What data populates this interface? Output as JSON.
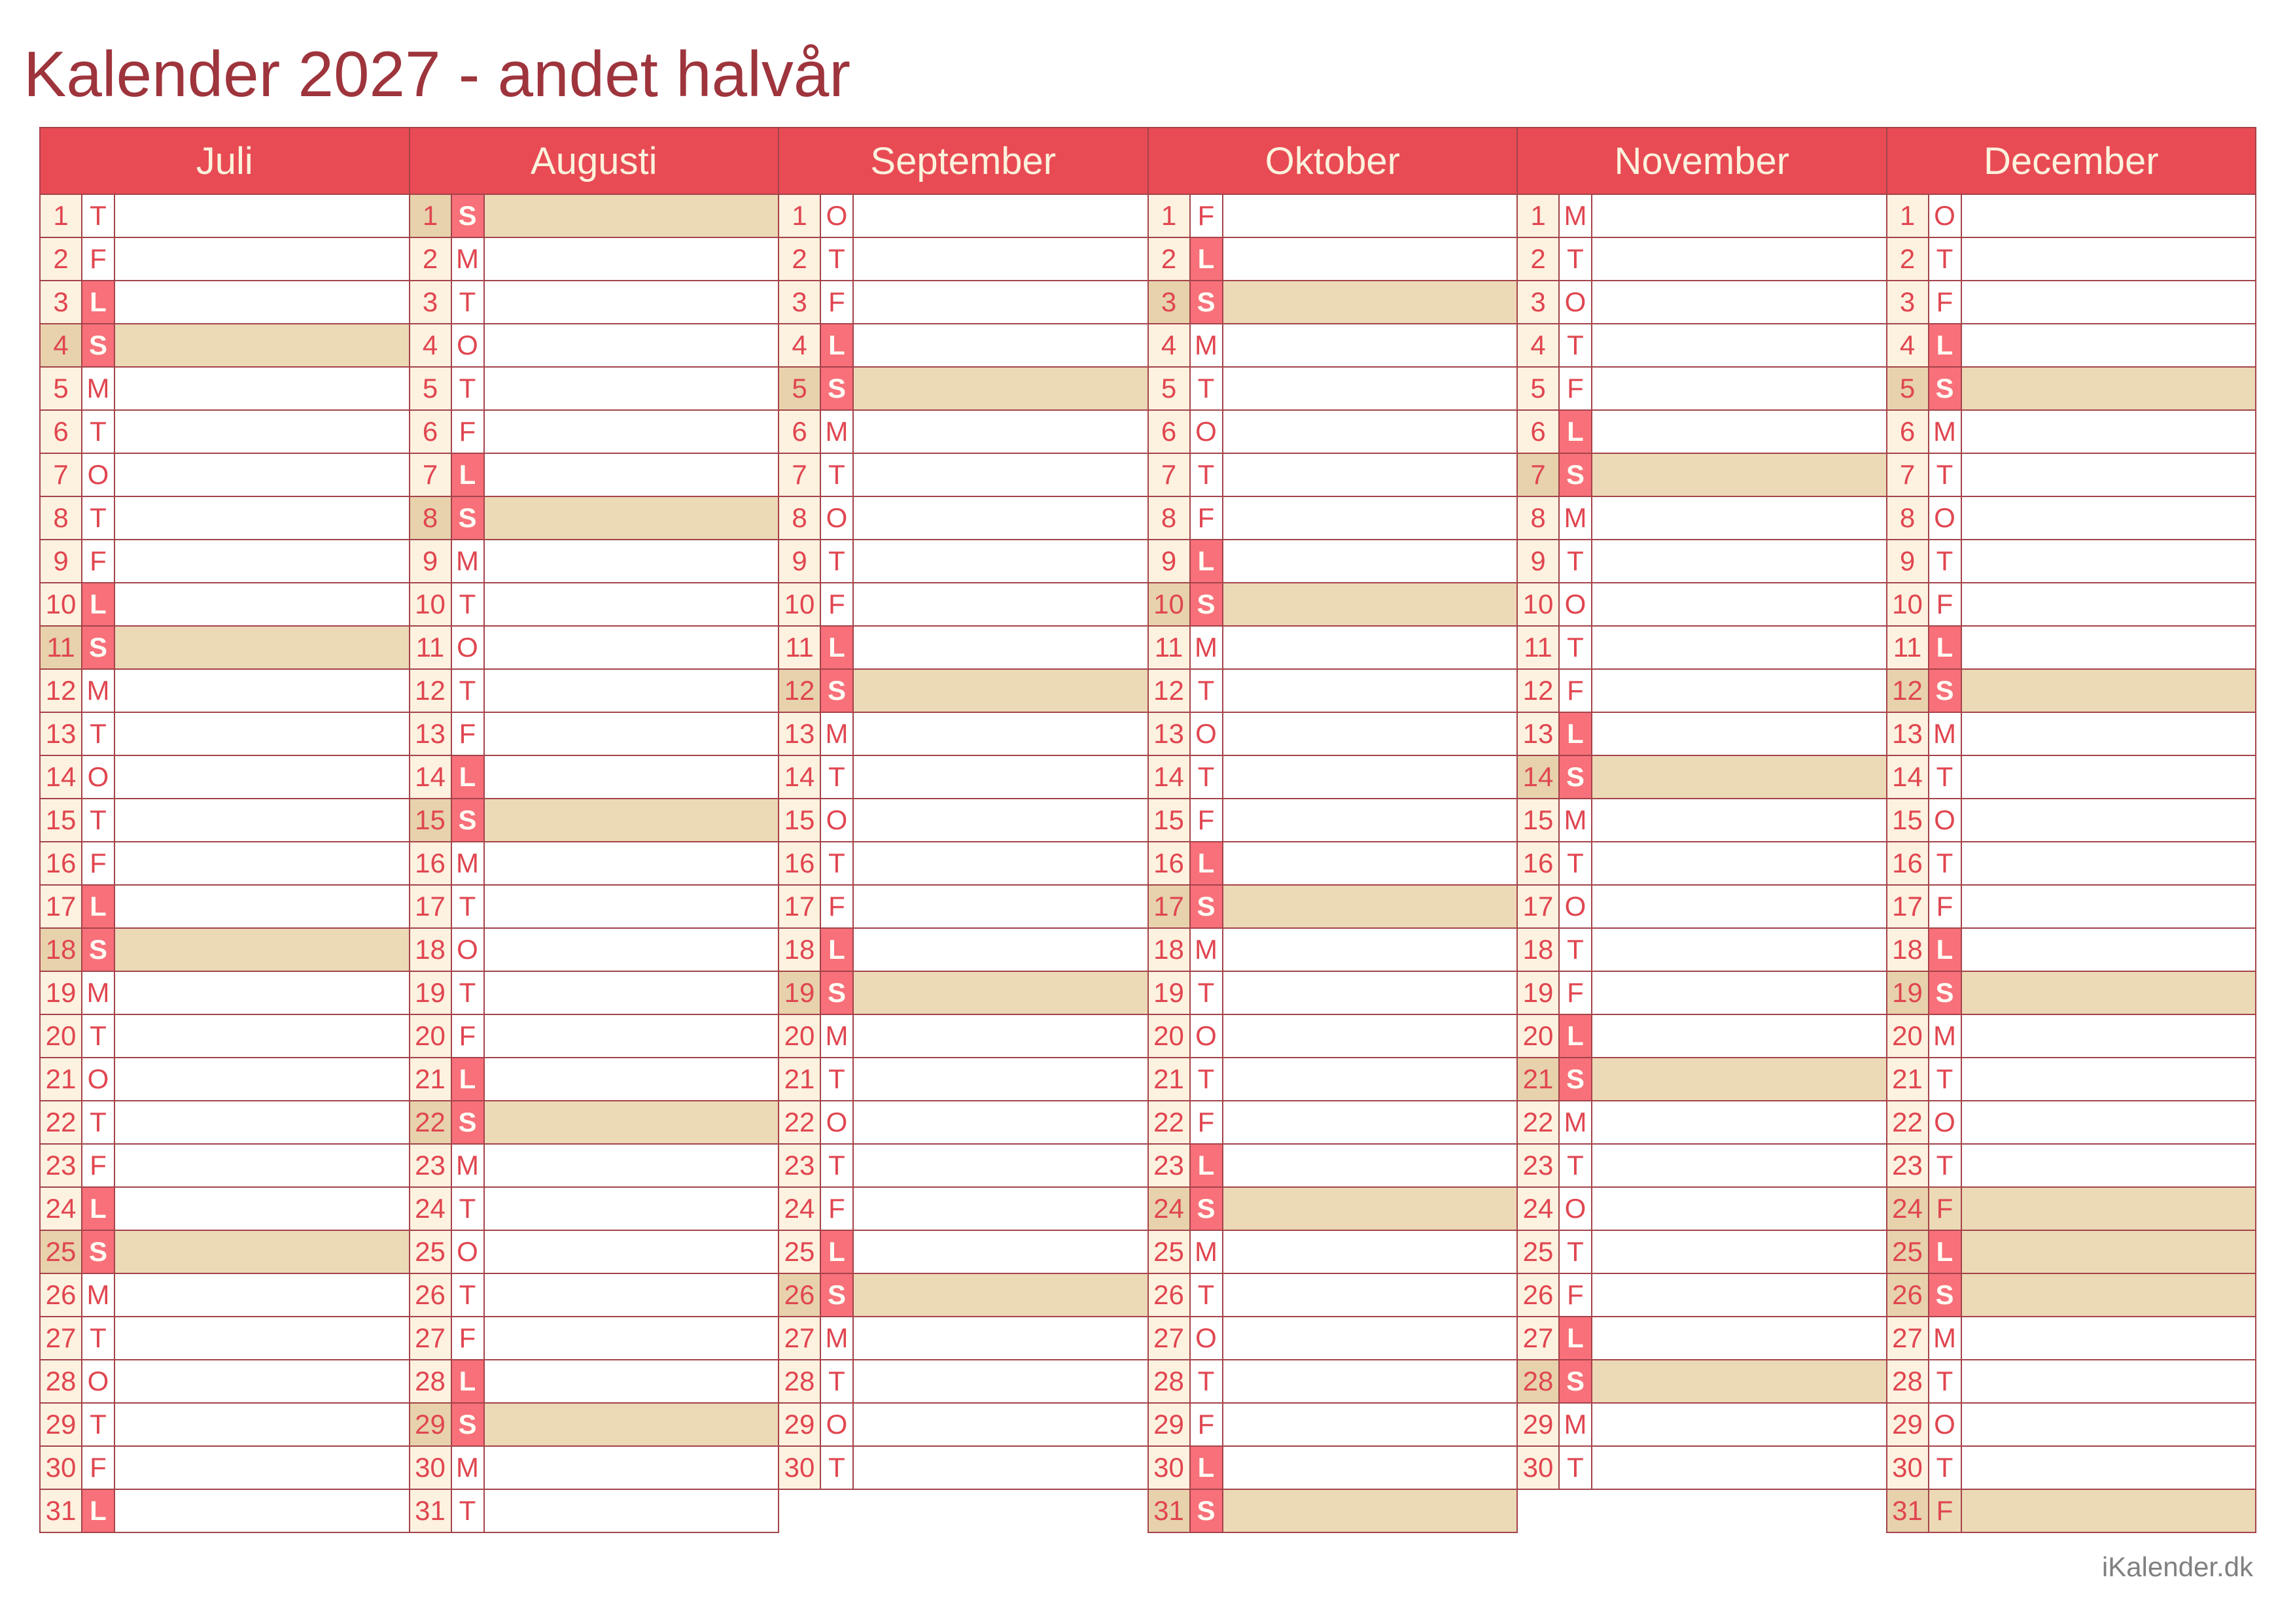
{
  "title": "Kalender 2027 - andet halvår",
  "footer": "iKalender.dk",
  "colors": {
    "title_red": "#9e343c",
    "header_red": "#e84b54",
    "header_text_cream": "#fbf2dd",
    "border_dark_red": "#a4434a",
    "weekend_box_red": "#f8707a",
    "box_letter_white": "#fffdf5",
    "day_text_red": "#e04650",
    "number_cell_cream": "#fdf1df",
    "number_cell_beige": "#e7d2ac",
    "highlight_beige": "#ecd9b6",
    "footer_gray": "#808080"
  },
  "months": [
    {
      "name": "Juli",
      "days": [
        {
          "d": 1,
          "w": "T"
        },
        {
          "d": 2,
          "w": "F"
        },
        {
          "d": 3,
          "w": "L",
          "box": true
        },
        {
          "d": 4,
          "w": "S",
          "box": true,
          "hl": true
        },
        {
          "d": 5,
          "w": "M"
        },
        {
          "d": 6,
          "w": "T"
        },
        {
          "d": 7,
          "w": "O"
        },
        {
          "d": 8,
          "w": "T"
        },
        {
          "d": 9,
          "w": "F"
        },
        {
          "d": 10,
          "w": "L",
          "box": true
        },
        {
          "d": 11,
          "w": "S",
          "box": true,
          "hl": true
        },
        {
          "d": 12,
          "w": "M"
        },
        {
          "d": 13,
          "w": "T"
        },
        {
          "d": 14,
          "w": "O"
        },
        {
          "d": 15,
          "w": "T"
        },
        {
          "d": 16,
          "w": "F"
        },
        {
          "d": 17,
          "w": "L",
          "box": true
        },
        {
          "d": 18,
          "w": "S",
          "box": true,
          "hl": true
        },
        {
          "d": 19,
          "w": "M"
        },
        {
          "d": 20,
          "w": "T"
        },
        {
          "d": 21,
          "w": "O"
        },
        {
          "d": 22,
          "w": "T"
        },
        {
          "d": 23,
          "w": "F"
        },
        {
          "d": 24,
          "w": "L",
          "box": true
        },
        {
          "d": 25,
          "w": "S",
          "box": true,
          "hl": true
        },
        {
          "d": 26,
          "w": "M"
        },
        {
          "d": 27,
          "w": "T"
        },
        {
          "d": 28,
          "w": "O"
        },
        {
          "d": 29,
          "w": "T"
        },
        {
          "d": 30,
          "w": "F"
        },
        {
          "d": 31,
          "w": "L",
          "box": true
        }
      ]
    },
    {
      "name": "Augusti",
      "days": [
        {
          "d": 1,
          "w": "S",
          "box": true,
          "hl": true
        },
        {
          "d": 2,
          "w": "M"
        },
        {
          "d": 3,
          "w": "T"
        },
        {
          "d": 4,
          "w": "O"
        },
        {
          "d": 5,
          "w": "T"
        },
        {
          "d": 6,
          "w": "F"
        },
        {
          "d": 7,
          "w": "L",
          "box": true
        },
        {
          "d": 8,
          "w": "S",
          "box": true,
          "hl": true
        },
        {
          "d": 9,
          "w": "M"
        },
        {
          "d": 10,
          "w": "T"
        },
        {
          "d": 11,
          "w": "O"
        },
        {
          "d": 12,
          "w": "T"
        },
        {
          "d": 13,
          "w": "F"
        },
        {
          "d": 14,
          "w": "L",
          "box": true
        },
        {
          "d": 15,
          "w": "S",
          "box": true,
          "hl": true
        },
        {
          "d": 16,
          "w": "M"
        },
        {
          "d": 17,
          "w": "T"
        },
        {
          "d": 18,
          "w": "O"
        },
        {
          "d": 19,
          "w": "T"
        },
        {
          "d": 20,
          "w": "F"
        },
        {
          "d": 21,
          "w": "L",
          "box": true
        },
        {
          "d": 22,
          "w": "S",
          "box": true,
          "hl": true
        },
        {
          "d": 23,
          "w": "M"
        },
        {
          "d": 24,
          "w": "T"
        },
        {
          "d": 25,
          "w": "O"
        },
        {
          "d": 26,
          "w": "T"
        },
        {
          "d": 27,
          "w": "F"
        },
        {
          "d": 28,
          "w": "L",
          "box": true
        },
        {
          "d": 29,
          "w": "S",
          "box": true,
          "hl": true
        },
        {
          "d": 30,
          "w": "M"
        },
        {
          "d": 31,
          "w": "T"
        }
      ]
    },
    {
      "name": "September",
      "days": [
        {
          "d": 1,
          "w": "O"
        },
        {
          "d": 2,
          "w": "T"
        },
        {
          "d": 3,
          "w": "F"
        },
        {
          "d": 4,
          "w": "L",
          "box": true
        },
        {
          "d": 5,
          "w": "S",
          "box": true,
          "hl": true
        },
        {
          "d": 6,
          "w": "M"
        },
        {
          "d": 7,
          "w": "T"
        },
        {
          "d": 8,
          "w": "O"
        },
        {
          "d": 9,
          "w": "T"
        },
        {
          "d": 10,
          "w": "F"
        },
        {
          "d": 11,
          "w": "L",
          "box": true
        },
        {
          "d": 12,
          "w": "S",
          "box": true,
          "hl": true
        },
        {
          "d": 13,
          "w": "M"
        },
        {
          "d": 14,
          "w": "T"
        },
        {
          "d": 15,
          "w": "O"
        },
        {
          "d": 16,
          "w": "T"
        },
        {
          "d": 17,
          "w": "F"
        },
        {
          "d": 18,
          "w": "L",
          "box": true
        },
        {
          "d": 19,
          "w": "S",
          "box": true,
          "hl": true
        },
        {
          "d": 20,
          "w": "M"
        },
        {
          "d": 21,
          "w": "T"
        },
        {
          "d": 22,
          "w": "O"
        },
        {
          "d": 23,
          "w": "T"
        },
        {
          "d": 24,
          "w": "F"
        },
        {
          "d": 25,
          "w": "L",
          "box": true
        },
        {
          "d": 26,
          "w": "S",
          "box": true,
          "hl": true
        },
        {
          "d": 27,
          "w": "M"
        },
        {
          "d": 28,
          "w": "T"
        },
        {
          "d": 29,
          "w": "O"
        },
        {
          "d": 30,
          "w": "T"
        }
      ]
    },
    {
      "name": "Oktober",
      "days": [
        {
          "d": 1,
          "w": "F"
        },
        {
          "d": 2,
          "w": "L",
          "box": true
        },
        {
          "d": 3,
          "w": "S",
          "box": true,
          "hl": true
        },
        {
          "d": 4,
          "w": "M"
        },
        {
          "d": 5,
          "w": "T"
        },
        {
          "d": 6,
          "w": "O"
        },
        {
          "d": 7,
          "w": "T"
        },
        {
          "d": 8,
          "w": "F"
        },
        {
          "d": 9,
          "w": "L",
          "box": true
        },
        {
          "d": 10,
          "w": "S",
          "box": true,
          "hl": true
        },
        {
          "d": 11,
          "w": "M"
        },
        {
          "d": 12,
          "w": "T"
        },
        {
          "d": 13,
          "w": "O"
        },
        {
          "d": 14,
          "w": "T"
        },
        {
          "d": 15,
          "w": "F"
        },
        {
          "d": 16,
          "w": "L",
          "box": true
        },
        {
          "d": 17,
          "w": "S",
          "box": true,
          "hl": true
        },
        {
          "d": 18,
          "w": "M"
        },
        {
          "d": 19,
          "w": "T"
        },
        {
          "d": 20,
          "w": "O"
        },
        {
          "d": 21,
          "w": "T"
        },
        {
          "d": 22,
          "w": "F"
        },
        {
          "d": 23,
          "w": "L",
          "box": true
        },
        {
          "d": 24,
          "w": "S",
          "box": true,
          "hl": true
        },
        {
          "d": 25,
          "w": "M"
        },
        {
          "d": 26,
          "w": "T"
        },
        {
          "d": 27,
          "w": "O"
        },
        {
          "d": 28,
          "w": "T"
        },
        {
          "d": 29,
          "w": "F"
        },
        {
          "d": 30,
          "w": "L",
          "box": true
        },
        {
          "d": 31,
          "w": "S",
          "box": true,
          "hl": true
        }
      ]
    },
    {
      "name": "November",
      "days": [
        {
          "d": 1,
          "w": "M"
        },
        {
          "d": 2,
          "w": "T"
        },
        {
          "d": 3,
          "w": "O"
        },
        {
          "d": 4,
          "w": "T"
        },
        {
          "d": 5,
          "w": "F"
        },
        {
          "d": 6,
          "w": "L",
          "box": true
        },
        {
          "d": 7,
          "w": "S",
          "box": true,
          "hl": true
        },
        {
          "d": 8,
          "w": "M"
        },
        {
          "d": 9,
          "w": "T"
        },
        {
          "d": 10,
          "w": "O"
        },
        {
          "d": 11,
          "w": "T"
        },
        {
          "d": 12,
          "w": "F"
        },
        {
          "d": 13,
          "w": "L",
          "box": true
        },
        {
          "d": 14,
          "w": "S",
          "box": true,
          "hl": true
        },
        {
          "d": 15,
          "w": "M"
        },
        {
          "d": 16,
          "w": "T"
        },
        {
          "d": 17,
          "w": "O"
        },
        {
          "d": 18,
          "w": "T"
        },
        {
          "d": 19,
          "w": "F"
        },
        {
          "d": 20,
          "w": "L",
          "box": true
        },
        {
          "d": 21,
          "w": "S",
          "box": true,
          "hl": true
        },
        {
          "d": 22,
          "w": "M"
        },
        {
          "d": 23,
          "w": "T"
        },
        {
          "d": 24,
          "w": "O"
        },
        {
          "d": 25,
          "w": "T"
        },
        {
          "d": 26,
          "w": "F"
        },
        {
          "d": 27,
          "w": "L",
          "box": true
        },
        {
          "d": 28,
          "w": "S",
          "box": true,
          "hl": true
        },
        {
          "d": 29,
          "w": "M"
        },
        {
          "d": 30,
          "w": "T"
        }
      ]
    },
    {
      "name": "December",
      "days": [
        {
          "d": 1,
          "w": "O"
        },
        {
          "d": 2,
          "w": "T"
        },
        {
          "d": 3,
          "w": "F"
        },
        {
          "d": 4,
          "w": "L",
          "box": true
        },
        {
          "d": 5,
          "w": "S",
          "box": true,
          "hl": true
        },
        {
          "d": 6,
          "w": "M"
        },
        {
          "d": 7,
          "w": "T"
        },
        {
          "d": 8,
          "w": "O"
        },
        {
          "d": 9,
          "w": "T"
        },
        {
          "d": 10,
          "w": "F"
        },
        {
          "d": 11,
          "w": "L",
          "box": true
        },
        {
          "d": 12,
          "w": "S",
          "box": true,
          "hl": true
        },
        {
          "d": 13,
          "w": "M"
        },
        {
          "d": 14,
          "w": "T"
        },
        {
          "d": 15,
          "w": "O"
        },
        {
          "d": 16,
          "w": "T"
        },
        {
          "d": 17,
          "w": "F"
        },
        {
          "d": 18,
          "w": "L",
          "box": true
        },
        {
          "d": 19,
          "w": "S",
          "box": true,
          "hl": true
        },
        {
          "d": 20,
          "w": "M"
        },
        {
          "d": 21,
          "w": "T"
        },
        {
          "d": 22,
          "w": "O"
        },
        {
          "d": 23,
          "w": "T"
        },
        {
          "d": 24,
          "w": "F",
          "hl": true
        },
        {
          "d": 25,
          "w": "L",
          "box": true,
          "hl": true
        },
        {
          "d": 26,
          "w": "S",
          "box": true,
          "hl": true
        },
        {
          "d": 27,
          "w": "M"
        },
        {
          "d": 28,
          "w": "T"
        },
        {
          "d": 29,
          "w": "O"
        },
        {
          "d": 30,
          "w": "T"
        },
        {
          "d": 31,
          "w": "F",
          "hl": true
        }
      ]
    }
  ]
}
